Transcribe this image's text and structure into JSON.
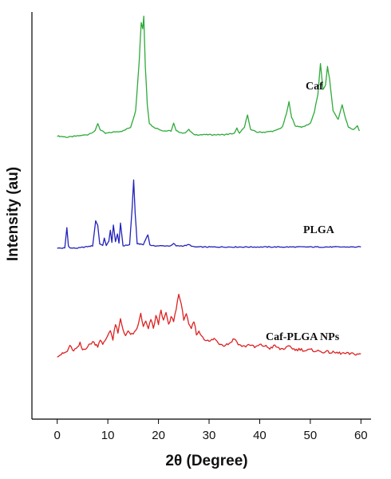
{
  "chart_data": {
    "type": "line",
    "xlabel": "2θ (Degree)",
    "ylabel": "Intensity (au)",
    "xlim": [
      -5,
      62
    ],
    "xticks": [
      0,
      10,
      20,
      30,
      40,
      50,
      60
    ],
    "ylim": [
      0,
      10
    ],
    "grid": false,
    "series": [
      {
        "name": "Caf",
        "color": "#2eaa3a",
        "offset": 6.8,
        "scale": 0.31,
        "x": [
          0,
          2,
          4,
          6,
          7.5,
          8,
          8.5,
          9.5,
          11,
          13,
          14.5,
          15.5,
          16.2,
          16.6,
          16.9,
          17.1,
          17.4,
          17.8,
          18.2,
          19,
          21,
          22.5,
          23,
          23.5,
          25,
          26,
          27,
          29,
          31,
          33,
          35,
          35.5,
          36,
          37,
          37.6,
          38.2,
          39.5,
          41,
          43,
          44.5,
          45.3,
          45.8,
          46.3,
          47,
          48.5,
          50,
          50.8,
          51.5,
          52,
          52.5,
          53,
          53.4,
          53.8,
          54.5,
          55.5,
          56.3,
          56.8,
          57.5,
          58.5,
          59.3,
          59.7
        ],
        "y": [
          0.5,
          0.4,
          0.5,
          0.6,
          0.9,
          1.5,
          1.0,
          0.7,
          0.8,
          0.9,
          1.2,
          2.5,
          6.5,
          9.5,
          9.0,
          10.0,
          6.0,
          3.0,
          1.5,
          1.2,
          0.9,
          0.9,
          1.5,
          0.9,
          0.7,
          1.0,
          0.6,
          0.6,
          0.6,
          0.6,
          0.7,
          1.1,
          0.7,
          1.2,
          2.2,
          1.0,
          0.8,
          0.8,
          0.9,
          1.2,
          2.3,
          3.2,
          2.0,
          1.3,
          1.2,
          1.5,
          2.4,
          3.8,
          6.2,
          4.2,
          4.5,
          6.0,
          5.0,
          2.5,
          1.8,
          3.0,
          2.1,
          1.2,
          1.0,
          1.3,
          0.9
        ]
      },
      {
        "name": "PLGA",
        "color": "#2222bb",
        "offset": 4.2,
        "scale": 0.28,
        "x": [
          0,
          1.5,
          1.9,
          2.2,
          2.6,
          4,
          7,
          7.6,
          8,
          8.4,
          9,
          9.3,
          9.7,
          10.2,
          10.5,
          10.8,
          11.1,
          11.5,
          11.9,
          12.2,
          12.5,
          13,
          14.3,
          14.8,
          15.1,
          15.4,
          15.8,
          17,
          17.9,
          18.3,
          18.8,
          20,
          22.5,
          23,
          23.5,
          25,
          26,
          27,
          30,
          33,
          35,
          38,
          42,
          45,
          48,
          50,
          53,
          56,
          60
        ],
        "y": [
          0,
          0,
          1.8,
          0.2,
          0,
          0,
          0.2,
          2.4,
          2.0,
          0.4,
          0.2,
          0.9,
          0.2,
          0.6,
          1.6,
          0.5,
          2.0,
          0.6,
          1.2,
          0.4,
          2.2,
          0.2,
          0.3,
          3.5,
          6.0,
          3.0,
          0.4,
          0.3,
          1.2,
          0.3,
          0.2,
          0.2,
          0.2,
          0.4,
          0.2,
          0.2,
          0.3,
          0.1,
          0.1,
          0.1,
          0.1,
          0.1,
          0.1,
          0.1,
          0.1,
          0.1,
          0.1,
          0.1,
          0.1
        ]
      },
      {
        "name": "Caf-PLGA NPs",
        "color": "#dd2222",
        "offset": 1.5,
        "scale": 0.2,
        "x": [
          0,
          1,
          2,
          2.5,
          3,
          4,
          4.5,
          5,
          6,
          7,
          8,
          8.5,
          9,
          10,
          10.5,
          11,
          11.5,
          12,
          12.5,
          13,
          13.5,
          14,
          15,
          16,
          16.5,
          17,
          17.5,
          18,
          18.5,
          19,
          19.5,
          20,
          20.5,
          21,
          21.5,
          22,
          22.5,
          23,
          23.5,
          24,
          24.5,
          25,
          25.5,
          26,
          26.5,
          27,
          27.5,
          28,
          29,
          30,
          31,
          32,
          33,
          34,
          35,
          36,
          37,
          38,
          39,
          40,
          41,
          42,
          43,
          44,
          45,
          46,
          47,
          48,
          49,
          50,
          52,
          54,
          56,
          58,
          60
        ],
        "y": [
          0.3,
          0.5,
          0.8,
          1.6,
          0.9,
          1.2,
          1.8,
          1.0,
          1.4,
          2.0,
          1.5,
          2.3,
          1.6,
          2.8,
          3.5,
          2.2,
          4.2,
          3.0,
          4.8,
          3.5,
          2.8,
          3.2,
          2.8,
          4.0,
          5.5,
          3.8,
          4.5,
          3.5,
          4.8,
          3.6,
          5.2,
          4.2,
          6.0,
          4.5,
          5.6,
          4.0,
          5.0,
          4.6,
          6.0,
          8.0,
          6.5,
          4.8,
          5.5,
          4.0,
          3.6,
          4.5,
          3.0,
          3.2,
          2.4,
          2.0,
          2.4,
          1.8,
          1.6,
          1.8,
          2.4,
          1.6,
          1.4,
          1.7,
          1.3,
          1.6,
          1.5,
          1.2,
          1.5,
          1.1,
          1.2,
          1.4,
          1.0,
          1.1,
          0.9,
          1.0,
          0.8,
          0.7,
          0.6,
          0.5,
          0.5
        ]
      }
    ]
  }
}
